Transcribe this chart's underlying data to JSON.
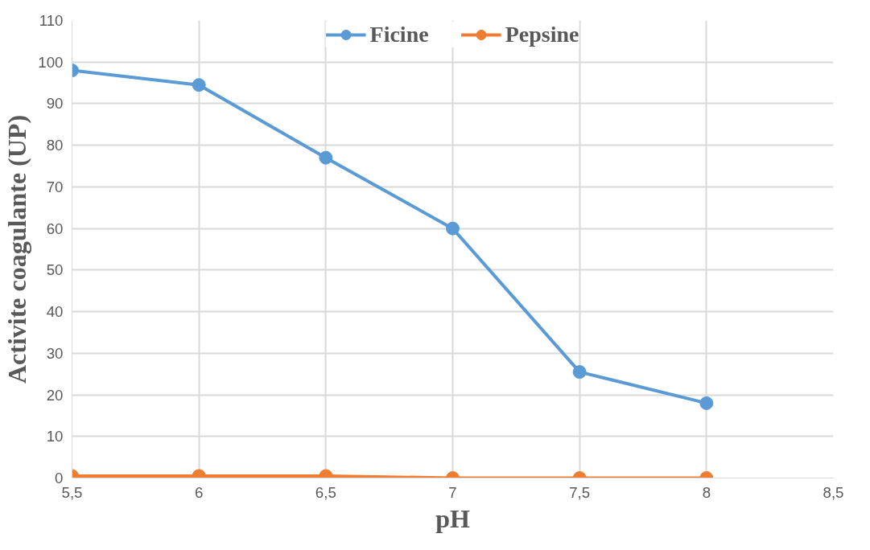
{
  "chart_data": {
    "type": "line",
    "xlabel": "pH",
    "ylabel": "Activite coagulante (UP)",
    "x": [
      5.5,
      6,
      6.5,
      7,
      7.5,
      8
    ],
    "series": [
      {
        "name": "Ficine",
        "color": "#5b9bd5",
        "values": [
          98,
          94.5,
          77,
          60,
          25.5,
          18
        ]
      },
      {
        "name": "Pepsine",
        "color": "#ed7d31",
        "values": [
          0.5,
          0.5,
          0.5,
          0,
          0,
          0
        ]
      }
    ],
    "xlim": [
      5.5,
      8.5
    ],
    "ylim": [
      0,
      110
    ],
    "xticks": [
      {
        "value": 5.5,
        "label": "5,5"
      },
      6,
      {
        "value": 6.5,
        "label": "6,5"
      },
      7,
      {
        "value": 7.5,
        "label": "7,5"
      },
      8,
      {
        "value": 8.5,
        "label": "8,5"
      }
    ],
    "yticks": [
      0,
      10,
      20,
      30,
      40,
      50,
      60,
      70,
      80,
      90,
      100,
      110
    ],
    "grid": true,
    "legend": "top",
    "marker": "circle",
    "line_style": "solid"
  }
}
